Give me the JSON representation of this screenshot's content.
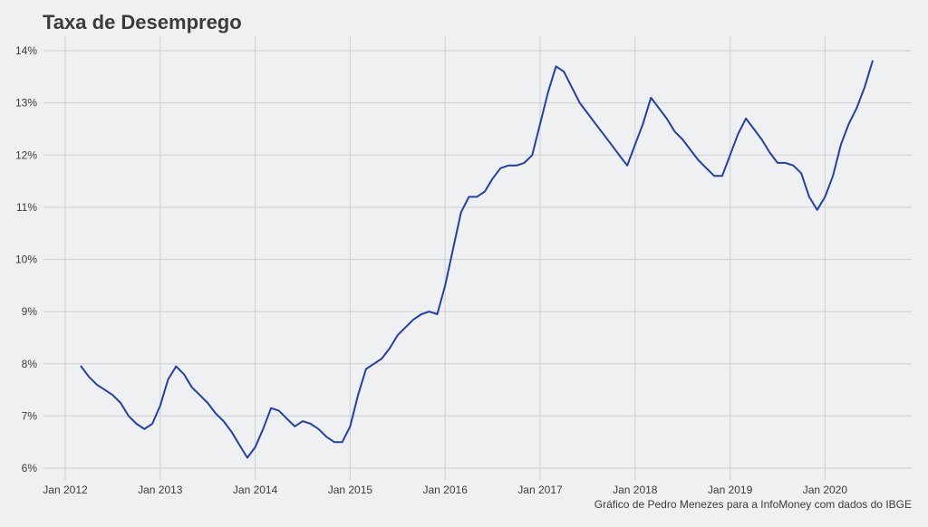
{
  "chart_data": {
    "type": "line",
    "title": "Taxa de Desemprego",
    "caption": "Gráfico de Pedro Menezes para a InfoMoney com dados do IBGE",
    "xlabel": "",
    "ylabel": "",
    "x_ticks": [
      "Jan 2012",
      "Jan 2013",
      "Jan 2014",
      "Jan 2015",
      "Jan 2016",
      "Jan 2017",
      "Jan 2018",
      "Jan 2019",
      "Jan 2020"
    ],
    "y_ticks": [
      "6%",
      "7%",
      "8%",
      "9%",
      "10%",
      "11%",
      "12%",
      "13%",
      "14%"
    ],
    "ylim": [
      6,
      14
    ],
    "xlim": [
      "2012-01",
      "2020-08"
    ],
    "grid": true,
    "line_color": "#2340a8",
    "x": [
      "2012-03",
      "2012-04",
      "2012-05",
      "2012-06",
      "2012-07",
      "2012-08",
      "2012-09",
      "2012-10",
      "2012-11",
      "2012-12",
      "2013-01",
      "2013-02",
      "2013-03",
      "2013-04",
      "2013-05",
      "2013-06",
      "2013-07",
      "2013-08",
      "2013-09",
      "2013-10",
      "2013-11",
      "2013-12",
      "2014-01",
      "2014-02",
      "2014-03",
      "2014-04",
      "2014-05",
      "2014-06",
      "2014-07",
      "2014-08",
      "2014-09",
      "2014-10",
      "2014-11",
      "2014-12",
      "2015-01",
      "2015-02",
      "2015-03",
      "2015-04",
      "2015-05",
      "2015-06",
      "2015-07",
      "2015-08",
      "2015-09",
      "2015-10",
      "2015-11",
      "2015-12",
      "2016-01",
      "2016-02",
      "2016-03",
      "2016-04",
      "2016-05",
      "2016-06",
      "2016-07",
      "2016-08",
      "2016-09",
      "2016-10",
      "2016-11",
      "2016-12",
      "2017-01",
      "2017-02",
      "2017-03",
      "2017-04",
      "2017-05",
      "2017-06",
      "2017-07",
      "2017-08",
      "2017-09",
      "2017-10",
      "2017-11",
      "2017-12",
      "2018-01",
      "2018-02",
      "2018-03",
      "2018-04",
      "2018-05",
      "2018-06",
      "2018-07",
      "2018-08",
      "2018-09",
      "2018-10",
      "2018-11",
      "2018-12",
      "2019-01",
      "2019-02",
      "2019-03",
      "2019-04",
      "2019-05",
      "2019-06",
      "2019-07",
      "2019-08",
      "2019-09",
      "2019-10",
      "2019-11",
      "2019-12",
      "2020-01",
      "2020-02",
      "2020-03",
      "2020-04",
      "2020-05",
      "2020-06",
      "2020-07"
    ],
    "series": [
      {
        "values": [
          7.95,
          7.75,
          7.6,
          7.5,
          7.4,
          7.25,
          7.0,
          6.85,
          6.75,
          6.85,
          7.2,
          7.7,
          7.95,
          7.8,
          7.55,
          7.4,
          7.25,
          7.05,
          6.9,
          6.7,
          6.45,
          6.2,
          6.4,
          6.75,
          7.15,
          7.1,
          6.95,
          6.8,
          6.9,
          6.85,
          6.75,
          6.6,
          6.5,
          6.5,
          6.8,
          7.4,
          7.9,
          8.0,
          8.1,
          8.3,
          8.55,
          8.7,
          8.85,
          8.95,
          9.0,
          8.95,
          9.5,
          10.2,
          10.9,
          11.2,
          11.2,
          11.3,
          11.55,
          11.75,
          11.8,
          11.8,
          11.85,
          12.0,
          12.6,
          13.2,
          13.7,
          13.6,
          13.3,
          13.0,
          12.8,
          12.6,
          12.4,
          12.2,
          12.0,
          11.8,
          12.2,
          12.6,
          13.1,
          12.9,
          12.7,
          12.45,
          12.3,
          12.1,
          11.9,
          11.75,
          11.6,
          11.6,
          12.0,
          12.4,
          12.7,
          12.5,
          12.3,
          12.05,
          11.85,
          11.85,
          11.8,
          11.65,
          11.2,
          10.95,
          11.2,
          11.6,
          12.2,
          12.6,
          12.9,
          13.3,
          13.8
        ]
      }
    ]
  }
}
